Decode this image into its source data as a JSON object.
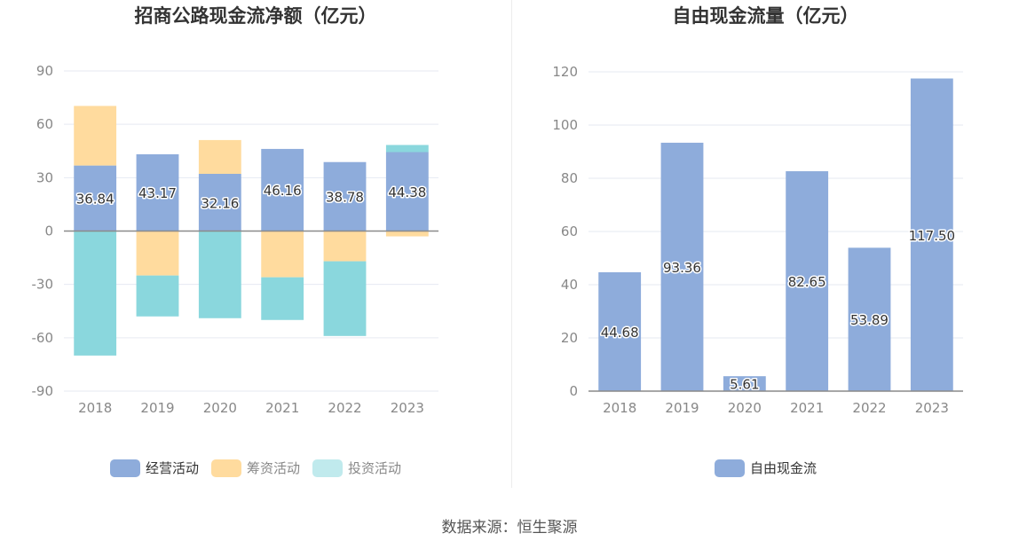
{
  "colors": {
    "operating": "#8eacdb",
    "financing": "#ffdb9e",
    "investing": "#8ad7dd",
    "investing_legend": "#c0eaed",
    "grid": "#e6e9f2",
    "axis": "#8a8a8a"
  },
  "footer": {
    "source": "数据来源：恒生聚源"
  },
  "chart_data": [
    {
      "type": "bar",
      "stacked": true,
      "title": "招商公路现金流净额（亿元）",
      "categories": [
        "2018",
        "2019",
        "2020",
        "2021",
        "2022",
        "2023"
      ],
      "ylim": [
        -90,
        90
      ],
      "yticks": [
        90,
        60,
        30,
        0,
        -30,
        -60,
        -90
      ],
      "grid": true,
      "legend_position": "bottom",
      "series": [
        {
          "name": "经营活动",
          "values": [
            36.84,
            43.17,
            32.16,
            46.16,
            38.78,
            44.38
          ],
          "labels": [
            "36.84",
            "43.17",
            "32.16",
            "46.16",
            "38.78",
            "44.38"
          ]
        },
        {
          "name": "筹资活动",
          "values": [
            33.5,
            -25.0,
            19.0,
            -26.0,
            -17.0,
            -3.0
          ]
        },
        {
          "name": "投资活动",
          "values": [
            -70.0,
            -23.0,
            -49.0,
            -24.0,
            -42.0,
            4.0
          ]
        }
      ]
    },
    {
      "type": "bar",
      "title": "自由现金流量（亿元）",
      "categories": [
        "2018",
        "2019",
        "2020",
        "2021",
        "2022",
        "2023"
      ],
      "ylim": [
        0,
        120
      ],
      "yticks": [
        120,
        100,
        80,
        60,
        40,
        20,
        0
      ],
      "grid": true,
      "legend_position": "bottom",
      "series": [
        {
          "name": "自由现金流",
          "values": [
            44.68,
            93.36,
            5.61,
            82.65,
            53.89,
            117.5
          ],
          "labels": [
            "44.68",
            "93.36",
            "5.61",
            "82.65",
            "53.89",
            "117.50"
          ]
        }
      ]
    }
  ]
}
